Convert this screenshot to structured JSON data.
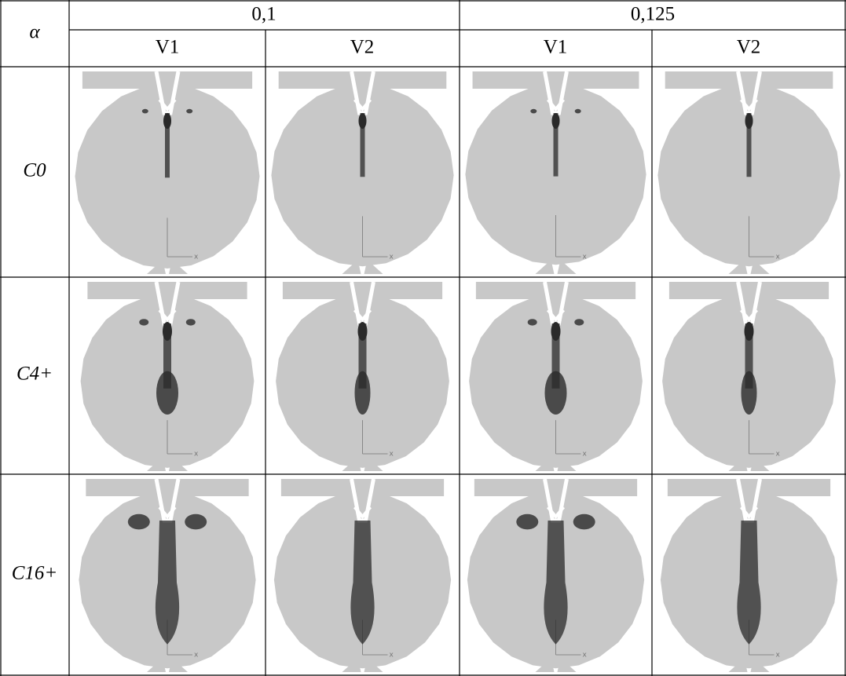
{
  "table": {
    "corner": "α",
    "groups": [
      "0,1",
      "0,125"
    ],
    "subheaders": [
      "V1",
      "V2",
      "V1",
      "V2"
    ],
    "rows": [
      "C0",
      "C4+",
      "C16+"
    ]
  },
  "figure": {
    "axis_label": "x"
  }
}
